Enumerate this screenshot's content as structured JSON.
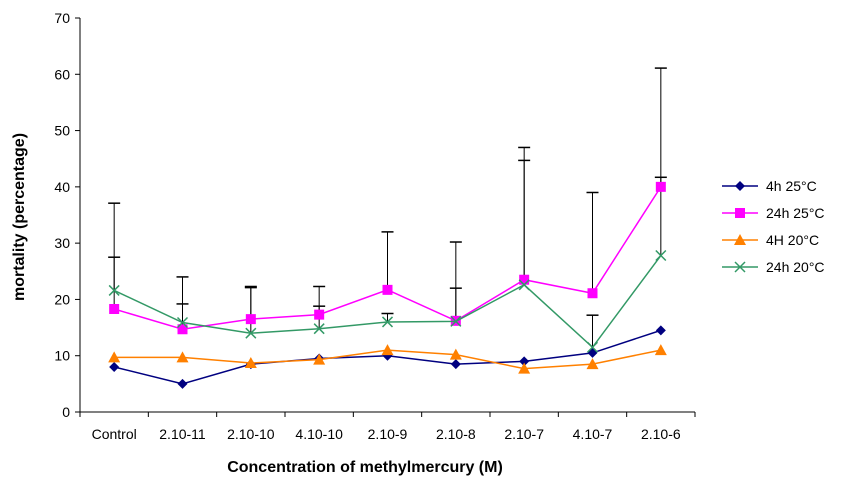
{
  "chart_data": {
    "type": "line",
    "title": "",
    "xlabel": "Concentration of methylmercury (M)",
    "ylabel": "mortality (percentage)",
    "ylim": [
      0,
      70
    ],
    "yticks": [
      0,
      10,
      20,
      30,
      40,
      50,
      60,
      70
    ],
    "grid": false,
    "legend_position": "right",
    "categories": [
      "Control",
      "2.10-11",
      "2.10-10",
      "4.10-10",
      "2.10-9",
      "2.10-8",
      "2.10-7",
      "4.10-7",
      "2.10-6"
    ],
    "series": [
      {
        "name": "4h 25°C",
        "color": "#000080",
        "marker": "diamond",
        "values": [
          8,
          5,
          8.5,
          9.5,
          10,
          8.5,
          9,
          10.5,
          14.5
        ],
        "error": [
          0,
          0,
          0,
          0,
          0,
          0,
          0,
          0,
          0
        ]
      },
      {
        "name": "24h 25°C",
        "color": "#FF00FF",
        "marker": "square",
        "values": [
          18.3,
          14.7,
          16.5,
          17.3,
          21.7,
          16.2,
          23.5,
          21.1,
          40
        ],
        "error": [
          18.8,
          9.3,
          5.8,
          5.0,
          10.3,
          14.0,
          23.5,
          17.9,
          21.1
        ]
      },
      {
        "name": "4H 20°C",
        "color": "#FF8000",
        "marker": "triangle",
        "values": [
          9.7,
          9.7,
          8.7,
          9.3,
          11,
          10.2,
          7.7,
          8.5,
          11
        ],
        "error": [
          0,
          0,
          0,
          0,
          0,
          0,
          0,
          0,
          0
        ]
      },
      {
        "name": "24h 20°C",
        "color": "#339966",
        "marker": "x",
        "values": [
          21.6,
          15.9,
          14,
          14.8,
          16,
          16.1,
          22.6,
          11.5,
          27.8
        ],
        "error": [
          5.9,
          3.3,
          8.1,
          4.0,
          1.5,
          5.9,
          22.1,
          5.7,
          13.9
        ]
      }
    ]
  }
}
